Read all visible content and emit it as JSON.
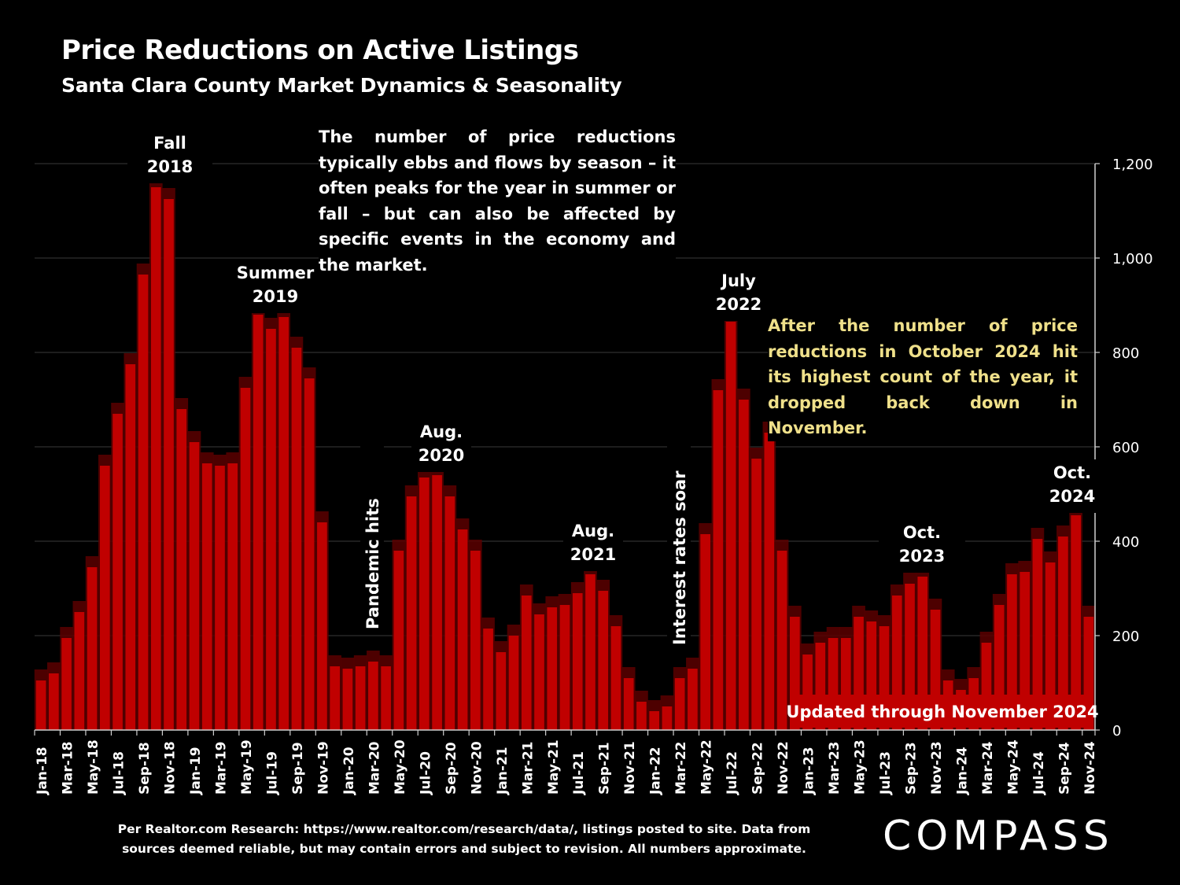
{
  "header": {
    "title": "Price Reductions on Active Listings",
    "subtitle": "Santa Clara County Market Dynamics & Seasonality"
  },
  "notes": {
    "top": "The number of price reductions typically ebbs and flows by season – it often peaks for the year in summer or fall – but can also be affected by specific events in the economy and the market.",
    "right": "After the number of price reductions in October 2024 hit its highest count of the year, it dropped back down in November."
  },
  "footer": {
    "source_line1": "Per Realtor.com Research:  https://www.realtor.com/research/data/, listings posted to site. Data from",
    "source_line2": "sources deemed reliable, but may contain errors and subject to revision. All numbers approximate.",
    "logo": "COMPASS"
  },
  "colors": {
    "bar": "#c00000",
    "bar_shadow": "#5a0000",
    "note_yellow": "#efe08a",
    "badge": "#c00000"
  },
  "chart_data": {
    "type": "bar",
    "ylim": [
      0,
      1200
    ],
    "yticks": [
      "0",
      "200",
      "400",
      "600",
      "800",
      "1,000",
      "1,200"
    ],
    "ytick_values": [
      0,
      200,
      400,
      600,
      800,
      1000,
      1200
    ],
    "grid": true,
    "x_tick_labels": [
      "Jan-18",
      "Mar-18",
      "May-18",
      "Jul-18",
      "Sep-18",
      "Nov-18",
      "Jan-19",
      "Mar-19",
      "May-19",
      "Jul-19",
      "Sep-19",
      "Nov-19",
      "Jan-20",
      "Mar-20",
      "May-20",
      "Jul-20",
      "Sep-20",
      "Nov-20",
      "Jan-21",
      "Mar-21",
      "May-21",
      "Jul-21",
      "Sep-21",
      "Nov-21",
      "Jan-22",
      "Mar-22",
      "May-22",
      "Jul-22",
      "Sep-22",
      "Nov-22",
      "Jan-23",
      "Mar-23",
      "May-23",
      "Jul-23",
      "Sep-23",
      "Nov-23",
      "Jan-24",
      "Mar-24",
      "May-24",
      "Jul-24",
      "Sep-24",
      "Nov-24"
    ],
    "categories": [
      "Jan-18",
      "Feb-18",
      "Mar-18",
      "Apr-18",
      "May-18",
      "Jun-18",
      "Jul-18",
      "Aug-18",
      "Sep-18",
      "Oct-18",
      "Nov-18",
      "Dec-18",
      "Jan-19",
      "Feb-19",
      "Mar-19",
      "Apr-19",
      "May-19",
      "Jun-19",
      "Jul-19",
      "Aug-19",
      "Sep-19",
      "Oct-19",
      "Nov-19",
      "Dec-19",
      "Jan-20",
      "Feb-20",
      "Mar-20",
      "Apr-20",
      "May-20",
      "Jun-20",
      "Jul-20",
      "Aug-20",
      "Sep-20",
      "Oct-20",
      "Nov-20",
      "Dec-20",
      "Jan-21",
      "Feb-21",
      "Mar-21",
      "Apr-21",
      "May-21",
      "Jun-21",
      "Jul-21",
      "Aug-21",
      "Sep-21",
      "Oct-21",
      "Nov-21",
      "Dec-21",
      "Jan-22",
      "Feb-22",
      "Mar-22",
      "Apr-22",
      "May-22",
      "Jun-22",
      "Jul-22",
      "Aug-22",
      "Sep-22",
      "Oct-22",
      "Nov-22",
      "Dec-22",
      "Jan-23",
      "Feb-23",
      "Mar-23",
      "Apr-23",
      "May-23",
      "Jun-23",
      "Jul-23",
      "Aug-23",
      "Sep-23",
      "Oct-23",
      "Nov-23",
      "Dec-23",
      "Jan-24",
      "Feb-24",
      "Mar-24",
      "Apr-24",
      "May-24",
      "Jun-24",
      "Jul-24",
      "Aug-24",
      "Sep-24",
      "Oct-24",
      "Nov-24"
    ],
    "values": [
      105,
      120,
      195,
      250,
      345,
      560,
      670,
      775,
      965,
      1150,
      1125,
      680,
      610,
      565,
      560,
      565,
      725,
      880,
      850,
      875,
      810,
      745,
      440,
      135,
      130,
      135,
      145,
      135,
      380,
      495,
      535,
      540,
      495,
      425,
      380,
      215,
      165,
      200,
      285,
      245,
      260,
      265,
      290,
      330,
      295,
      220,
      110,
      60,
      40,
      50,
      110,
      130,
      415,
      720,
      865,
      700,
      575,
      630,
      380,
      240,
      160,
      185,
      195,
      195,
      240,
      230,
      220,
      285,
      310,
      325,
      255,
      105,
      85,
      110,
      185,
      265,
      330,
      335,
      405,
      355,
      410,
      455,
      240
    ],
    "annotations": [
      {
        "lines": [
          "Fall",
          "2018"
        ]
      },
      {
        "lines": [
          "Summer",
          "2019"
        ]
      },
      {
        "lines": [
          "Pandemic hits"
        ]
      },
      {
        "lines": [
          "Aug.",
          "2020"
        ]
      },
      {
        "lines": [
          "Aug.",
          "2021"
        ]
      },
      {
        "lines": [
          "Interest rates soar"
        ]
      },
      {
        "lines": [
          "July",
          "2022"
        ]
      },
      {
        "lines": [
          "Oct.",
          "2023"
        ]
      },
      {
        "lines": [
          "Oct.",
          "2024"
        ]
      }
    ],
    "badge": "Updated through November 2024"
  }
}
